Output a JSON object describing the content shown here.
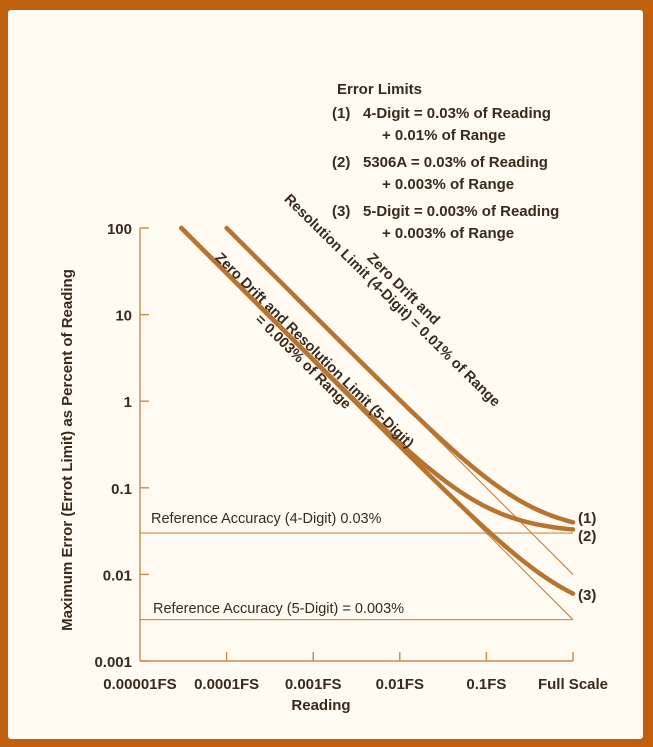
{
  "chart_data": {
    "type": "line",
    "y_scale": "log",
    "ylabel": "Maximum Error (Errot Limit) as Percent of Reading",
    "xlabel": "Reading",
    "y_ticks": [
      "100",
      "10",
      "1",
      "0.1",
      "0.01",
      "0.001"
    ],
    "x_ticks": [
      "0.00001FS",
      "0.0001FS",
      "0.001FS",
      "0.01FS",
      "0.1FS",
      "Full Scale"
    ],
    "x_tick_values": [
      1e-05,
      0.0001,
      0.001,
      0.01,
      0.1,
      1
    ],
    "ylim": [
      0.001,
      100
    ],
    "xlim": [
      1e-05,
      1
    ],
    "grid": false,
    "legend": {
      "title": "Error Limits",
      "entries": [
        {
          "id": "(1)",
          "line1": "4-Digit = 0.03% of Reading",
          "line2": "+ 0.01% of Range"
        },
        {
          "id": "(2)",
          "line1": "5306A = 0.03% of Reading",
          "line2": "+ 0.003% of Range"
        },
        {
          "id": "(3)",
          "line1": "5-Digit = 0.003% of Reading",
          "line2": "+ 0.003% of Range"
        }
      ]
    },
    "series": [
      {
        "id": "(1)",
        "reading_pct": 0.03,
        "range_pct": 0.01
      },
      {
        "id": "(2)",
        "reading_pct": 0.03,
        "range_pct": 0.003
      },
      {
        "id": "(3)",
        "reading_pct": 0.003,
        "range_pct": 0.003
      }
    ],
    "asymptotes": [
      {
        "range_pct": 0.01,
        "label_line1": "Zero Drift and",
        "label_line2": "Resolution Limit (4-Digit) = 0.01% of Range"
      },
      {
        "range_pct": 0.003,
        "label_line1": "Zero Drift and Resolution Limit (5-Digit)",
        "label_line2": "= 0.003% of Range"
      }
    ],
    "reference_lines": [
      {
        "value": 0.03,
        "label": "Reference Accuracy (4-Digit) 0.03%"
      },
      {
        "value": 0.003,
        "label": "Reference Accuracy (5-Digit) = 0.003%"
      }
    ],
    "colors": {
      "curve": "#b8742f",
      "thin_line": "#c98a4a",
      "axis": "#c98a4a",
      "text": "#3a2a1e",
      "background": "#fffaf2",
      "border": "#c0600f"
    }
  }
}
